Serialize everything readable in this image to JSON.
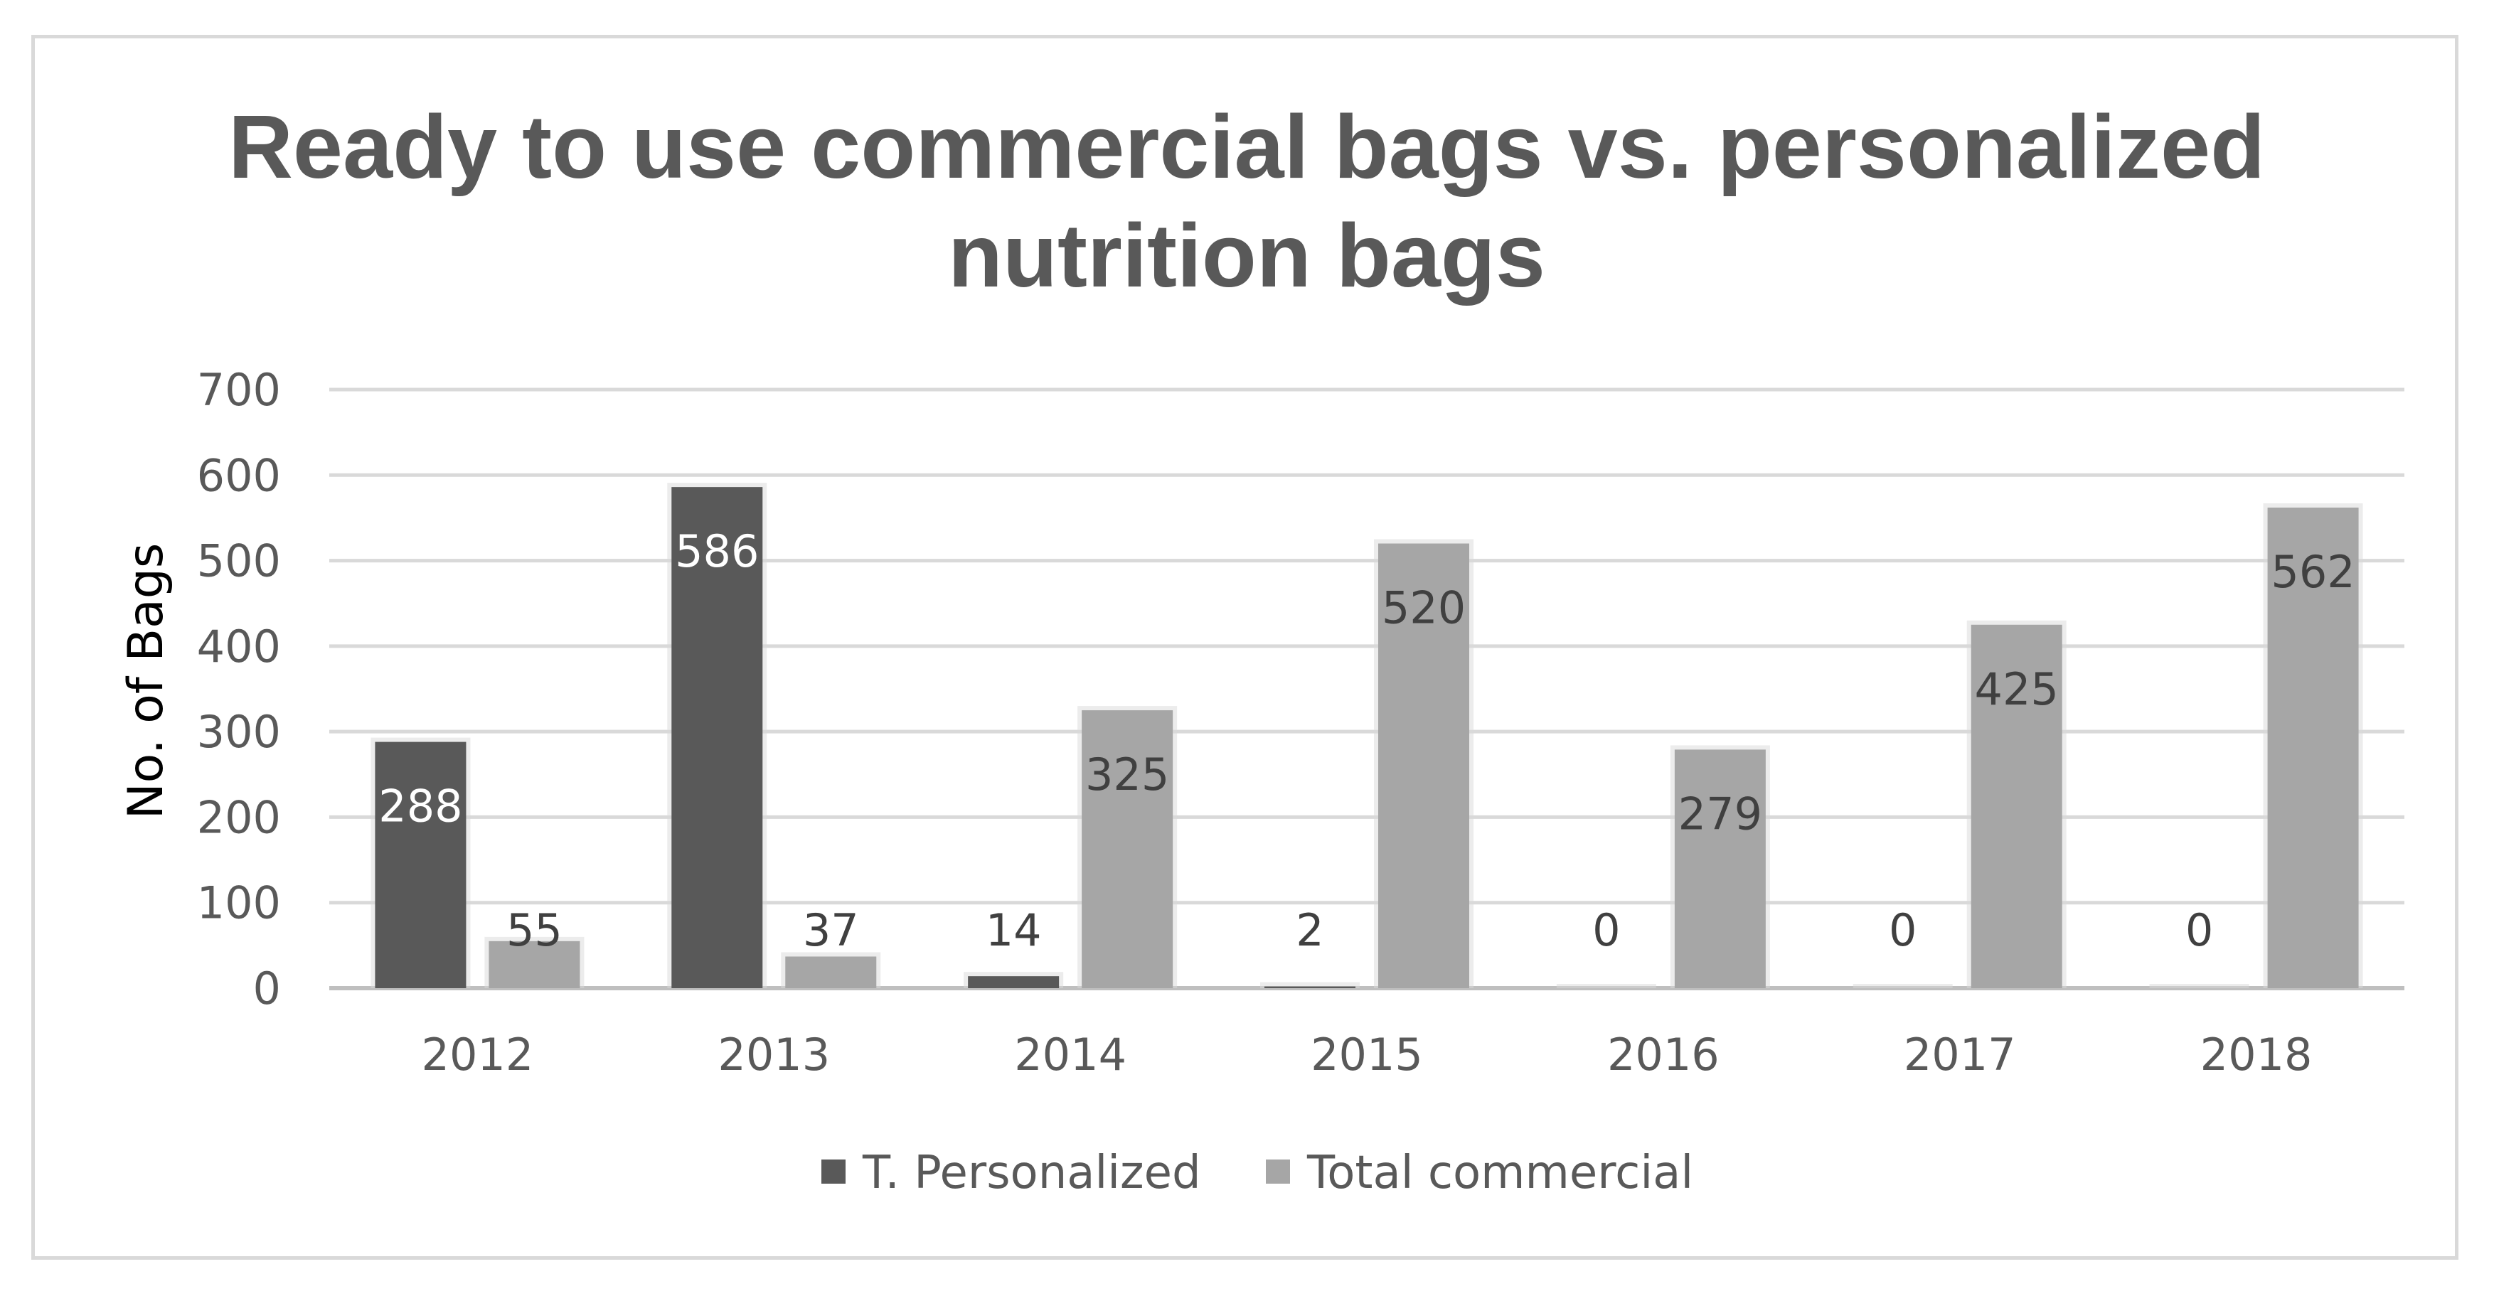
{
  "chart_data": {
    "type": "bar",
    "title_lines": [
      "Ready to use commercial bags vs. personalized",
      "nutrition bags"
    ],
    "xlabel": "",
    "ylabel": "No. of Bags",
    "categories": [
      "2012",
      "2013",
      "2014",
      "2015",
      "2016",
      "2017",
      "2018"
    ],
    "yticks": [
      "0",
      "100",
      "200",
      "300",
      "400",
      "500",
      "600",
      "700"
    ],
    "ylim": [
      0,
      700
    ],
    "grid": true,
    "legend_position": "bottom",
    "series": [
      {
        "name": "T. Personalized",
        "values": [
          288,
          586,
          14,
          2,
          0,
          0,
          0
        ],
        "color": "#595959"
      },
      {
        "name": "Total commercial",
        "values": [
          55,
          37,
          325,
          520,
          279,
          425,
          562
        ],
        "color": "#a6a6a6"
      }
    ]
  }
}
